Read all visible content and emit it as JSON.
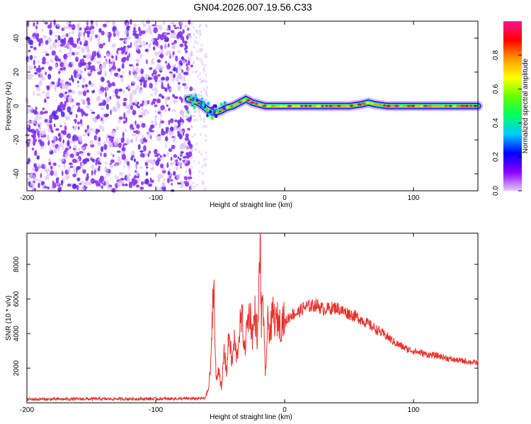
{
  "title": "GN04.2026.007.19.56.C33",
  "chart_data": [
    {
      "type": "heatmap",
      "xlabel": "Height of straight line (km)",
      "ylabel": "Frequency (Hz)",
      "xlim": [
        -200,
        150
      ],
      "ylim": [
        -50,
        50
      ],
      "xticks": [
        -200,
        -100,
        0,
        100
      ],
      "yticks": [
        -40,
        -20,
        0,
        20,
        40
      ],
      "noise_region_x": [
        -200,
        -72
      ],
      "ridge": {
        "x": [
          -75,
          -70,
          -65,
          -60,
          -55,
          -50,
          -45,
          -40,
          -35,
          -30,
          -25,
          -20,
          -15,
          -10,
          -5,
          0,
          10,
          20,
          30,
          40,
          50,
          60,
          65,
          70,
          80,
          90,
          100,
          110,
          120,
          130,
          140,
          150
        ],
        "freq": [
          4,
          3,
          1,
          -2,
          -4,
          -3,
          -1,
          0,
          2,
          4,
          2,
          1,
          0,
          0,
          0,
          0,
          0,
          0,
          0,
          0,
          0,
          1,
          2,
          1,
          0,
          0,
          0,
          0,
          0,
          0,
          0,
          0
        ]
      },
      "colorbar": {
        "label": "Normalized spectral amplitude",
        "range": [
          0,
          1
        ],
        "ticks": [
          0,
          0.2,
          0.4,
          0.6,
          0.8
        ],
        "tick_labels": [
          "0.0",
          "0.2",
          "0.4",
          "0.6",
          "0.8"
        ],
        "colors": [
          "#e8c8ff",
          "#8800ff",
          "#0000ff",
          "#00ccff",
          "#00ff66",
          "#66ff00",
          "#ffff00",
          "#ff9900",
          "#ff0000",
          "#ff1493"
        ]
      }
    },
    {
      "type": "line",
      "xlabel": "Height of straight line (km)",
      "ylabel": "SNR (10 * v/v)",
      "xlim": [
        -200,
        150
      ],
      "ylim": [
        0,
        9800
      ],
      "xticks": [
        -200,
        -100,
        0,
        100
      ],
      "yticks": [
        2000,
        4000,
        6000,
        8000
      ],
      "color": "#e8302a",
      "series": [
        {
          "x": [
            -200,
            -150,
            -100,
            -70,
            -62,
            -59,
            -57,
            -56,
            -55,
            -54,
            -53,
            -51,
            -49,
            -47,
            -45,
            -43,
            -41,
            -39,
            -37,
            -35,
            -33,
            -31,
            -29,
            -27,
            -25,
            -23,
            -21,
            -20,
            -19,
            -18,
            -17,
            -16,
            -15,
            -13,
            -11,
            -9,
            -7,
            -5,
            -3,
            -1,
            0,
            5,
            10,
            15,
            20,
            25,
            30,
            35,
            40,
            45,
            50,
            55,
            60,
            65,
            70,
            75,
            80,
            85,
            90,
            95,
            100,
            105,
            110,
            115,
            120,
            125,
            130,
            135,
            140,
            145,
            150
          ],
          "y": [
            200,
            220,
            230,
            240,
            260,
            800,
            2500,
            5500,
            7400,
            3200,
            1200,
            2100,
            700,
            3000,
            1800,
            4200,
            2200,
            3600,
            2500,
            4300,
            4900,
            3000,
            4600,
            5300,
            3900,
            5200,
            3700,
            6300,
            9800,
            4200,
            6600,
            3900,
            1500,
            4600,
            4100,
            5200,
            4600,
            4900,
            4400,
            5000,
            4600,
            5100,
            5200,
            5500,
            5600,
            5650,
            5400,
            5450,
            5500,
            5300,
            5150,
            5000,
            4800,
            4550,
            4300,
            4050,
            3800,
            3500,
            3300,
            3100,
            3000,
            2900,
            2800,
            2750,
            2700,
            2600,
            2500,
            2450,
            2400,
            2350,
            2300
          ]
        }
      ]
    }
  ]
}
